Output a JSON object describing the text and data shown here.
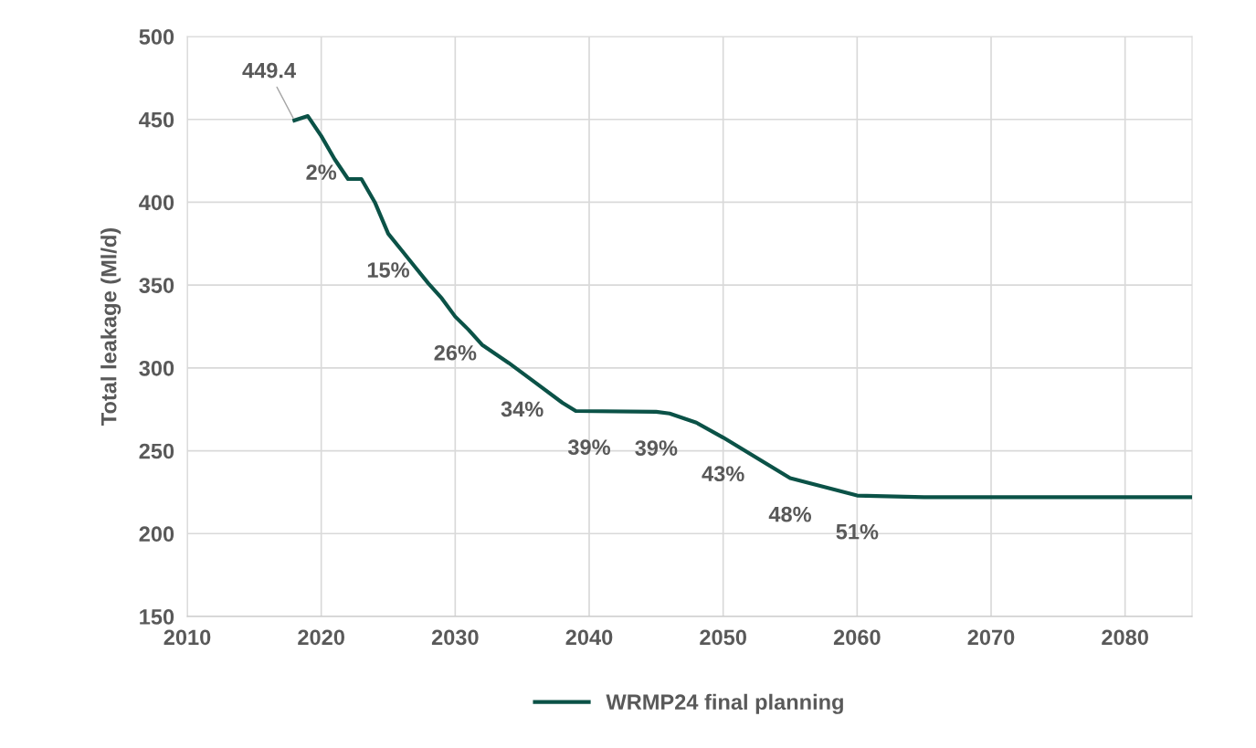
{
  "chart_data": {
    "type": "line",
    "ylabel": "Total leakage (Ml/d)",
    "series": [
      {
        "name": "WRMP24 final planning",
        "color": "#0b5247",
        "x": [
          2018,
          2019,
          2020,
          2021,
          2022,
          2023,
          2024,
          2025,
          2026,
          2027,
          2028,
          2029,
          2030,
          2031,
          2032,
          2034,
          2036,
          2038,
          2039,
          2045,
          2046,
          2048,
          2050,
          2055,
          2060,
          2065,
          2085
        ],
        "values": [
          449.4,
          452,
          440,
          426,
          414,
          414,
          400,
          381,
          371,
          361,
          351,
          342,
          331,
          323,
          314,
          303,
          291,
          279,
          274,
          273.5,
          272.5,
          267,
          258,
          233.5,
          223,
          222,
          222
        ]
      }
    ],
    "annotations": [
      {
        "text": "449.4",
        "x": 2018,
        "y": 449.4
      },
      {
        "text": "2%",
        "x": 2020,
        "y": 440
      },
      {
        "text": "15%",
        "x": 2025,
        "y": 381
      },
      {
        "text": "26%",
        "x": 2030,
        "y": 331
      },
      {
        "text": "34%",
        "x": 2035,
        "y": 297
      },
      {
        "text": "39%",
        "x": 2040,
        "y": 274
      },
      {
        "text": "39%",
        "x": 2045,
        "y": 273.5
      },
      {
        "text": "43%",
        "x": 2050,
        "y": 258
      },
      {
        "text": "48%",
        "x": 2055,
        "y": 233.5
      },
      {
        "text": "51%",
        "x": 2060,
        "y": 223
      }
    ],
    "xlim": [
      2010,
      2085
    ],
    "xticks": [
      2010,
      2020,
      2030,
      2040,
      2050,
      2060,
      2070,
      2080
    ],
    "ylim": [
      150,
      500
    ],
    "yticks": [
      150,
      200,
      250,
      300,
      350,
      400,
      450,
      500
    ],
    "grid": true,
    "legend": "bottom",
    "marker": "none",
    "line_style": "solid"
  }
}
